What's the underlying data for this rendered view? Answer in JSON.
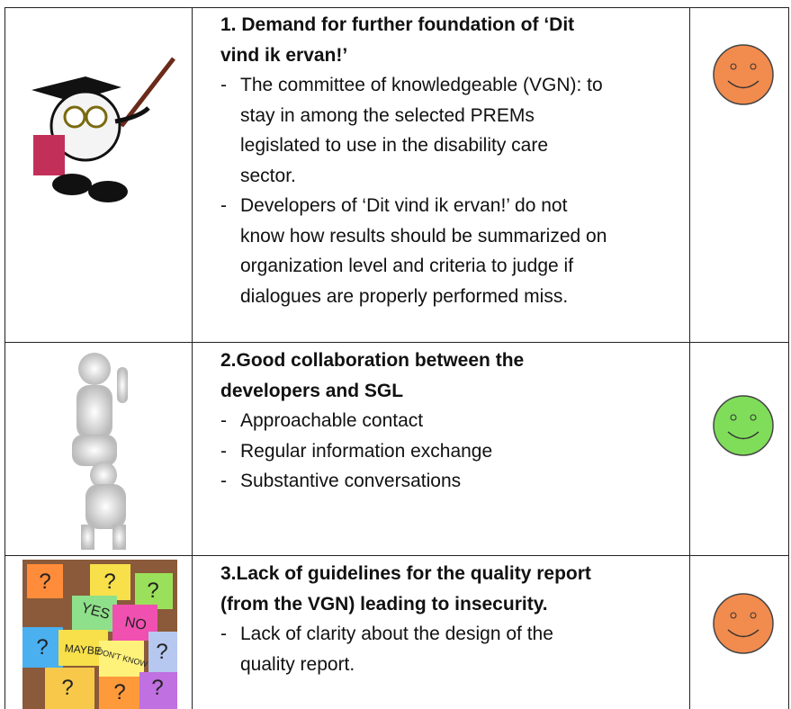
{
  "table": {
    "rows": [
      {
        "title": [
          "1. Demand for further foundation of ‘Dit",
          "vind ik ervan!’"
        ],
        "bullets": [
          [
            "The committee of knowledgeable (VGN): to",
            "stay in among the selected PREMs",
            "legislated to use in the disability care",
            "sector."
          ],
          [
            "Developers of ‘Dit vind ik ervan!’ do not",
            "know how results should be summarized on",
            "organization level and criteria to judge if",
            "dialogues are properly performed miss."
          ]
        ]
      },
      {
        "title": [
          "2.Good collaboration between the",
          "developers and SGL"
        ],
        "bullets": [
          [
            "Approachable contact"
          ],
          [
            "Regular information exchange"
          ],
          [
            "Substantive conversations"
          ]
        ]
      },
      {
        "title": [
          "3.Lack of guidelines for the quality report",
          "(from the VGN) leading to insecurity."
        ],
        "bullets": [
          [
            "Lack of clarity about the design of the",
            "quality report."
          ]
        ],
        "image_texts": [
          "YES",
          "NO",
          "MAYBE",
          "DON'T KNOW",
          "?"
        ]
      }
    ]
  }
}
